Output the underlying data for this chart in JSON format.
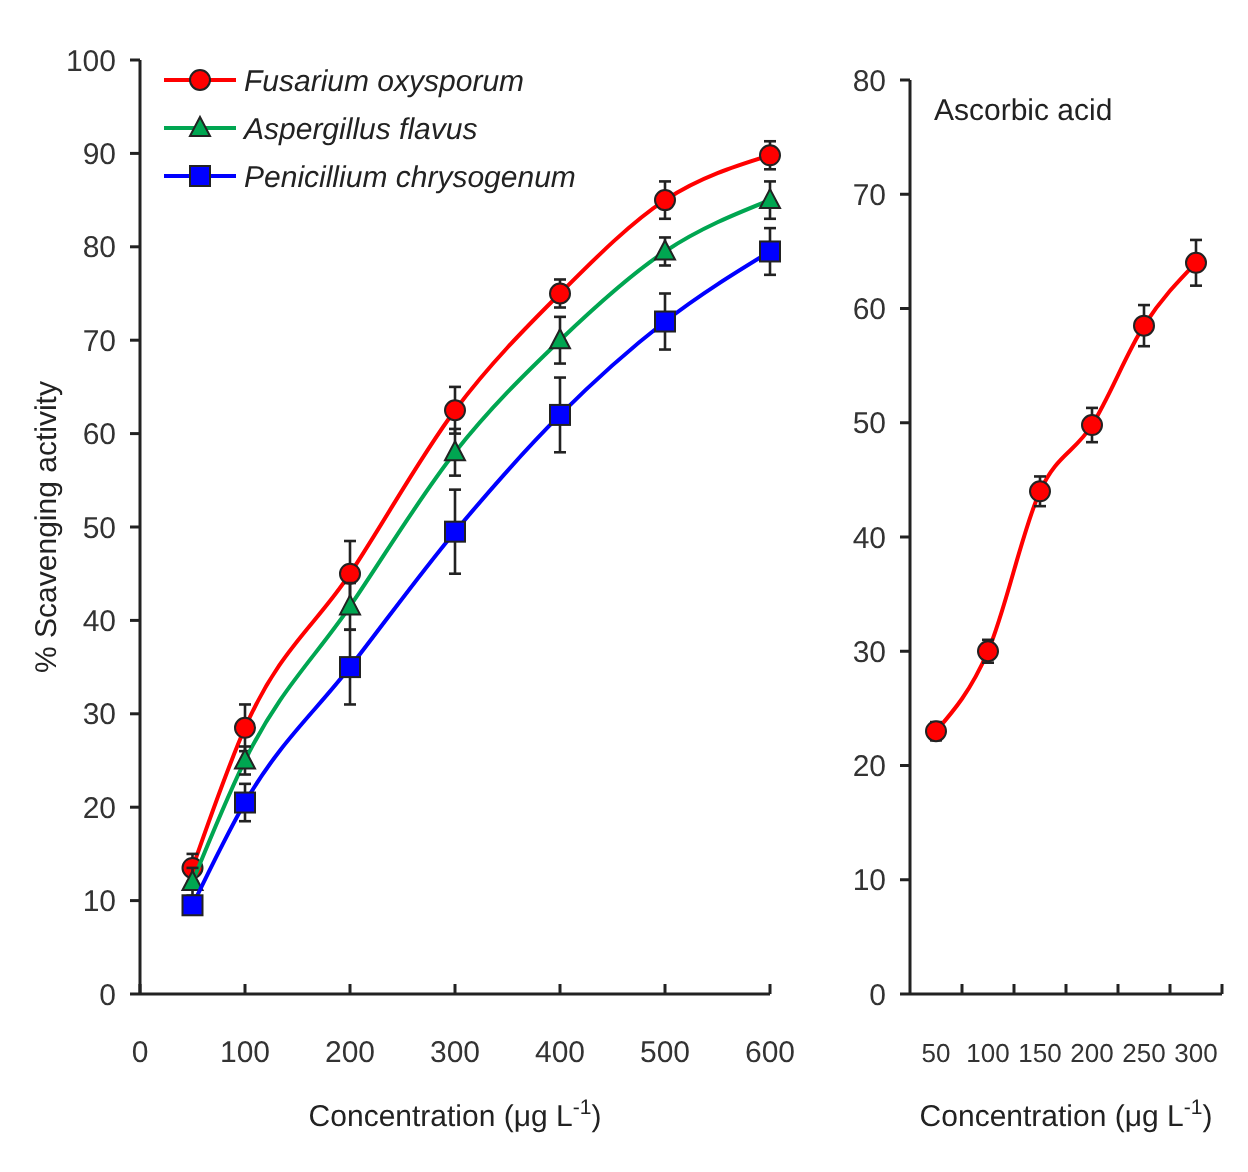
{
  "chart_data": [
    {
      "type": "line",
      "ylabel": "% Scavenging activity",
      "xlabel": "Concentration (μg L$^{-1}$)",
      "x": [
        50,
        100,
        200,
        300,
        400,
        500,
        600
      ],
      "xlim": [
        0,
        600
      ],
      "xticks": [
        0,
        100,
        200,
        300,
        400,
        500,
        600
      ],
      "ylim": [
        0,
        100
      ],
      "yticks": [
        0,
        10,
        20,
        30,
        40,
        50,
        60,
        70,
        80,
        90,
        100
      ],
      "legend": "top left",
      "grid": false,
      "series": [
        {
          "name": "Fusarium oxysporum",
          "color": "#ff0000",
          "marker": "circle",
          "values": [
            13.5,
            28.5,
            45,
            62.5,
            75,
            85,
            89.8
          ],
          "errors": [
            1.5,
            2.5,
            3.5,
            2.5,
            1.5,
            2,
            1.5
          ]
        },
        {
          "name": "Aspergillus flavus",
          "color": "#00a651",
          "marker": "triangle",
          "values": [
            12,
            25,
            41.5,
            58,
            70,
            79.5,
            85
          ],
          "errors": [
            1.5,
            1.5,
            2.5,
            2.5,
            2.5,
            1.5,
            2
          ]
        },
        {
          "name": "Penicillium chrysogenum",
          "color": "#0000ff",
          "marker": "square",
          "values": [
            9.5,
            20.5,
            35,
            49.5,
            62,
            72,
            79.5
          ],
          "errors": [
            1,
            2,
            4,
            4.5,
            4,
            3,
            2.5
          ]
        }
      ]
    },
    {
      "type": "line",
      "title": "Ascorbic acid",
      "xlabel": "Concentration (μg L$^{-1}$)",
      "categories": [
        "50",
        "100",
        "150",
        "200",
        "250",
        "300"
      ],
      "ylim": [
        0,
        80
      ],
      "yticks": [
        0,
        10,
        20,
        30,
        40,
        50,
        60,
        70,
        80
      ],
      "grid": false,
      "legend": false,
      "series": [
        {
          "color": "#ff0000",
          "marker": "circle",
          "values": [
            23,
            30,
            44,
            49.8,
            58.5,
            64
          ],
          "errors": [
            0.8,
            1,
            1.3,
            1.5,
            1.8,
            2
          ]
        }
      ]
    }
  ]
}
